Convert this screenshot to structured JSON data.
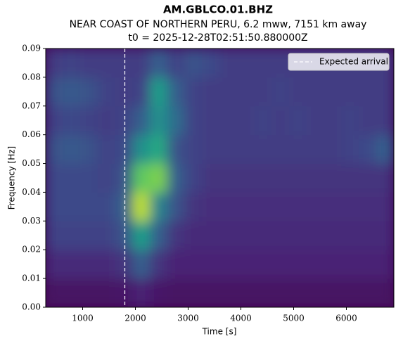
{
  "chart_data": {
    "type": "spectrogram",
    "title": "AM.GBLCO.01.BHZ",
    "subtitle": "NEAR COAST OF NORTHERN PERU, 6.2 mww, 7151 km away",
    "subtitle2": "t0 = 2025-12-28T02:51:50.880000Z",
    "xlabel": "Time [s]",
    "ylabel": "Frequency [Hz]",
    "xlim": [
      300,
      6900
    ],
    "ylim": [
      0,
      0.09
    ],
    "xticks": [
      1000,
      2000,
      3000,
      4000,
      5000,
      6000
    ],
    "yticks": [
      {
        "value": 0,
        "label": "0.00"
      },
      0.01,
      0.02,
      0.03,
      0.04,
      0.05,
      0.06,
      0.07,
      0.08,
      0.09
    ],
    "colormap": "viridis",
    "zlim": [
      0,
      1
    ],
    "time_bins": [
      300,
      630,
      960,
      1290,
      1620,
      1950,
      2280,
      2610,
      2940,
      3270,
      3600,
      3930,
      4260,
      4590,
      4920,
      5250,
      5580,
      5910,
      6240,
      6570,
      6900
    ],
    "freq_bins": [
      0,
      0.01,
      0.02,
      0.03,
      0.04,
      0.05,
      0.06,
      0.07,
      0.08,
      0.09
    ],
    "z": [
      [
        0.05,
        0.05,
        0.05,
        0.05,
        0.06,
        0.1,
        0.06,
        0.05,
        0.05,
        0.05,
        0.05,
        0.05,
        0.05,
        0.05,
        0.05,
        0.05,
        0.05,
        0.05,
        0.05,
        0.05
      ],
      [
        0.12,
        0.12,
        0.12,
        0.12,
        0.15,
        0.3,
        0.15,
        0.1,
        0.1,
        0.1,
        0.1,
        0.1,
        0.1,
        0.1,
        0.1,
        0.1,
        0.1,
        0.1,
        0.1,
        0.1
      ],
      [
        0.2,
        0.2,
        0.2,
        0.2,
        0.25,
        0.55,
        0.3,
        0.15,
        0.12,
        0.12,
        0.12,
        0.12,
        0.12,
        0.12,
        0.12,
        0.12,
        0.12,
        0.12,
        0.12,
        0.12
      ],
      [
        0.22,
        0.22,
        0.22,
        0.22,
        0.3,
        0.9,
        0.45,
        0.25,
        0.15,
        0.13,
        0.13,
        0.13,
        0.13,
        0.13,
        0.13,
        0.13,
        0.13,
        0.13,
        0.13,
        0.13
      ],
      [
        0.22,
        0.22,
        0.22,
        0.2,
        0.25,
        0.75,
        0.8,
        0.3,
        0.2,
        0.15,
        0.15,
        0.15,
        0.15,
        0.15,
        0.15,
        0.15,
        0.15,
        0.15,
        0.15,
        0.15
      ],
      [
        0.25,
        0.28,
        0.25,
        0.2,
        0.22,
        0.5,
        0.6,
        0.25,
        0.2,
        0.18,
        0.18,
        0.18,
        0.18,
        0.18,
        0.18,
        0.18,
        0.18,
        0.2,
        0.22,
        0.3
      ],
      [
        0.2,
        0.22,
        0.2,
        0.18,
        0.2,
        0.3,
        0.5,
        0.35,
        0.2,
        0.18,
        0.18,
        0.18,
        0.2,
        0.18,
        0.2,
        0.18,
        0.18,
        0.2,
        0.18,
        0.18
      ],
      [
        0.25,
        0.28,
        0.25,
        0.2,
        0.18,
        0.2,
        0.55,
        0.3,
        0.2,
        0.18,
        0.18,
        0.18,
        0.18,
        0.2,
        0.18,
        0.18,
        0.18,
        0.18,
        0.18,
        0.18
      ],
      [
        0.18,
        0.2,
        0.18,
        0.18,
        0.18,
        0.18,
        0.3,
        0.2,
        0.25,
        0.22,
        0.18,
        0.18,
        0.18,
        0.18,
        0.18,
        0.18,
        0.18,
        0.18,
        0.18,
        0.18
      ]
    ],
    "arrival": 1800,
    "arrival_label": "Expected arrival",
    "arrival_color": "#ffffff"
  }
}
